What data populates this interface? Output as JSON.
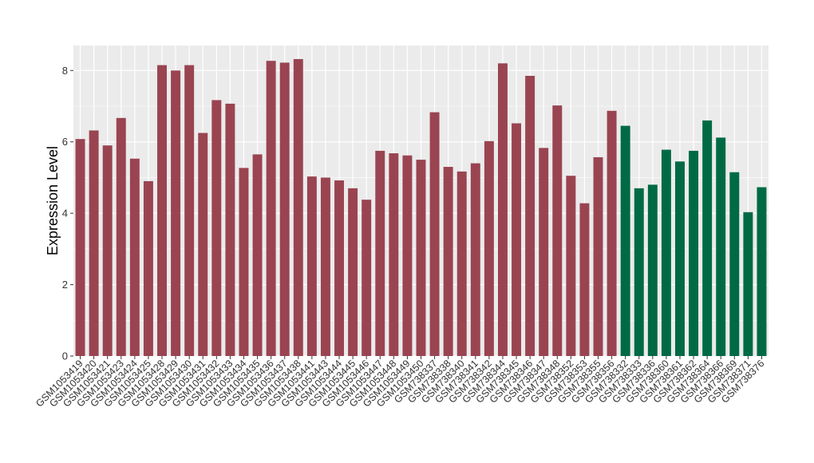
{
  "chart_data": {
    "type": "bar",
    "title": "",
    "xlabel": "",
    "ylabel": "Expression Level",
    "ylim": [
      0,
      8.7
    ],
    "yticks": [
      0,
      2,
      4,
      6,
      8
    ],
    "grid": true,
    "colors": {
      "group_a": "#9a4451",
      "group_b": "#006a45",
      "panel": "#ebebeb",
      "grid": "#ffffff"
    },
    "categories": [
      "GSM1053419",
      "GSM1053420",
      "GSM1053421",
      "GSM1053423",
      "GSM1053424",
      "GSM1053425",
      "GSM1053428",
      "GSM1053429",
      "GSM1053430",
      "GSM1053431",
      "GSM1053432",
      "GSM1053433",
      "GSM1053434",
      "GSM1053435",
      "GSM1053436",
      "GSM1053437",
      "GSM1053438",
      "GSM1053441",
      "GSM1053443",
      "GSM1053444",
      "GSM1053445",
      "GSM1053446",
      "GSM1053447",
      "GSM1053448",
      "GSM1053449",
      "GSM1053450",
      "GSM738337",
      "GSM738338",
      "GSM738340",
      "GSM738341",
      "GSM738342",
      "GSM738344",
      "GSM738345",
      "GSM738346",
      "GSM738347",
      "GSM738348",
      "GSM738352",
      "GSM738353",
      "GSM738355",
      "GSM738356",
      "GSM738332",
      "GSM738333",
      "GSM738336",
      "GSM738360",
      "GSM738361",
      "GSM738362",
      "GSM738364",
      "GSM738366",
      "GSM738369",
      "GSM738371",
      "GSM738376"
    ],
    "values": [
      6.08,
      6.32,
      5.9,
      6.67,
      5.53,
      4.9,
      8.15,
      8.0,
      8.15,
      6.25,
      7.17,
      7.07,
      5.27,
      5.65,
      8.27,
      8.22,
      8.32,
      5.03,
      5.0,
      4.92,
      4.7,
      4.38,
      5.75,
      5.68,
      5.62,
      5.5,
      6.83,
      5.3,
      5.17,
      5.4,
      6.02,
      8.2,
      6.52,
      7.85,
      5.83,
      7.02,
      5.05,
      4.28,
      5.57,
      6.87,
      6.45,
      4.7,
      4.8,
      5.78,
      5.45,
      5.75,
      6.6,
      6.12,
      5.15,
      4.03,
      4.73
    ],
    "groups": [
      "a",
      "a",
      "a",
      "a",
      "a",
      "a",
      "a",
      "a",
      "a",
      "a",
      "a",
      "a",
      "a",
      "a",
      "a",
      "a",
      "a",
      "a",
      "a",
      "a",
      "a",
      "a",
      "a",
      "a",
      "a",
      "a",
      "a",
      "a",
      "a",
      "a",
      "a",
      "a",
      "a",
      "a",
      "a",
      "a",
      "a",
      "a",
      "a",
      "a",
      "b",
      "b",
      "b",
      "b",
      "b",
      "b",
      "b",
      "b",
      "b",
      "b",
      "b"
    ]
  }
}
